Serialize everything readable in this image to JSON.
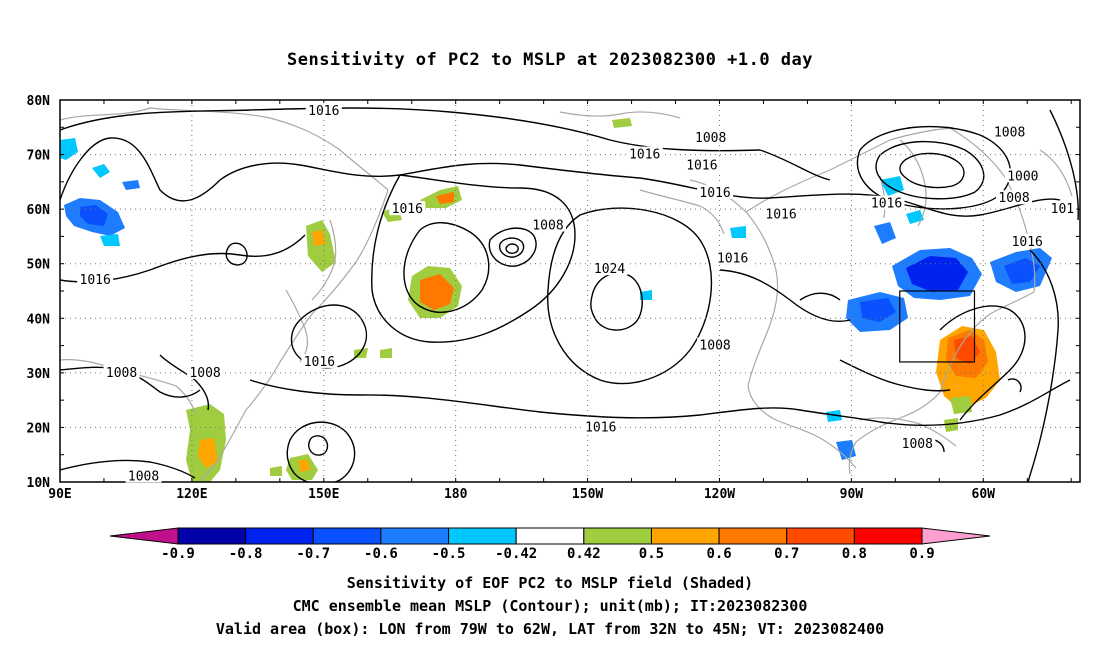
{
  "title": "Sensitivity of PC2 to MSLP at 2023082300 +1.0 day",
  "map": {
    "lat_labels": [
      "80N",
      "70N",
      "60N",
      "50N",
      "40N",
      "30N",
      "20N",
      "10N"
    ],
    "lon_labels": [
      "90E",
      "120E",
      "150E",
      "180",
      "150W",
      "120W",
      "90W",
      "60W"
    ],
    "lat_values": [
      80,
      70,
      60,
      50,
      40,
      30,
      20,
      10
    ],
    "lon_values": [
      90,
      120,
      150,
      180,
      210,
      240,
      270,
      300
    ],
    "lon_range": [
      90,
      322
    ],
    "lat_range": [
      10,
      80
    ],
    "contour_labels": [
      {
        "text": "1016",
        "lon": 150,
        "lat": 78
      },
      {
        "text": "1008",
        "lon": 238,
        "lat": 73
      },
      {
        "text": "1016",
        "lon": 223,
        "lat": 70
      },
      {
        "text": "1016",
        "lon": 236,
        "lat": 68
      },
      {
        "text": "1016",
        "lon": 239,
        "lat": 63
      },
      {
        "text": "1016",
        "lon": 254,
        "lat": 59
      },
      {
        "text": "1016",
        "lon": 278,
        "lat": 61
      },
      {
        "text": "1008",
        "lon": 306,
        "lat": 74
      },
      {
        "text": "1000",
        "lon": 309,
        "lat": 66
      },
      {
        "text": "1008",
        "lon": 307,
        "lat": 62
      },
      {
        "text": "101",
        "lon": 318,
        "lat": 60
      },
      {
        "text": "1016",
        "lon": 169,
        "lat": 60
      },
      {
        "text": "1008",
        "lon": 201,
        "lat": 57
      },
      {
        "text": "1016",
        "lon": 310,
        "lat": 54
      },
      {
        "text": "1016",
        "lon": 98,
        "lat": 47
      },
      {
        "text": "1016",
        "lon": 243,
        "lat": 51
      },
      {
        "text": "1024",
        "lon": 215,
        "lat": 49
      },
      {
        "text": "1016",
        "lon": 149,
        "lat": 32
      },
      {
        "text": "1008",
        "lon": 239,
        "lat": 35
      },
      {
        "text": "1008",
        "lon": 104,
        "lat": 30
      },
      {
        "text": "1008",
        "lon": 123,
        "lat": 30
      },
      {
        "text": "1016",
        "lon": 213,
        "lat": 20
      },
      {
        "text": "1008",
        "lon": 285,
        "lat": 17
      },
      {
        "text": "1008",
        "lon": 109,
        "lat": 11
      }
    ],
    "valid_box": {
      "lon_min": 281,
      "lon_max": 298,
      "lat_min": 32,
      "lat_max": 45
    }
  },
  "colorbar": {
    "labels": [
      "-0.9",
      "-0.8",
      "-0.7",
      "-0.6",
      "-0.5",
      "-0.42",
      "0.42",
      "0.5",
      "0.6",
      "0.7",
      "0.8",
      "0.9"
    ],
    "colors": [
      "#0000aa",
      "#0022ee",
      "#0a50ff",
      "#1e7cff",
      "#00c8ff",
      "#ffffff",
      "#a0cc40",
      "#ffa500",
      "#ff7800",
      "#ff4a00",
      "#ff0000"
    ],
    "end_low": "#c0118a",
    "end_high": "#ff9fd0"
  },
  "captions": [
    "Sensitivity of EOF PC2 to MSLP field (Shaded)",
    "CMC ensemble mean MSLP (Contour); unit(mb); IT:2023082300",
    "Valid area (box): LON from 79W to 62W, LAT from 32N to 45N; VT: 2023082400"
  ]
}
